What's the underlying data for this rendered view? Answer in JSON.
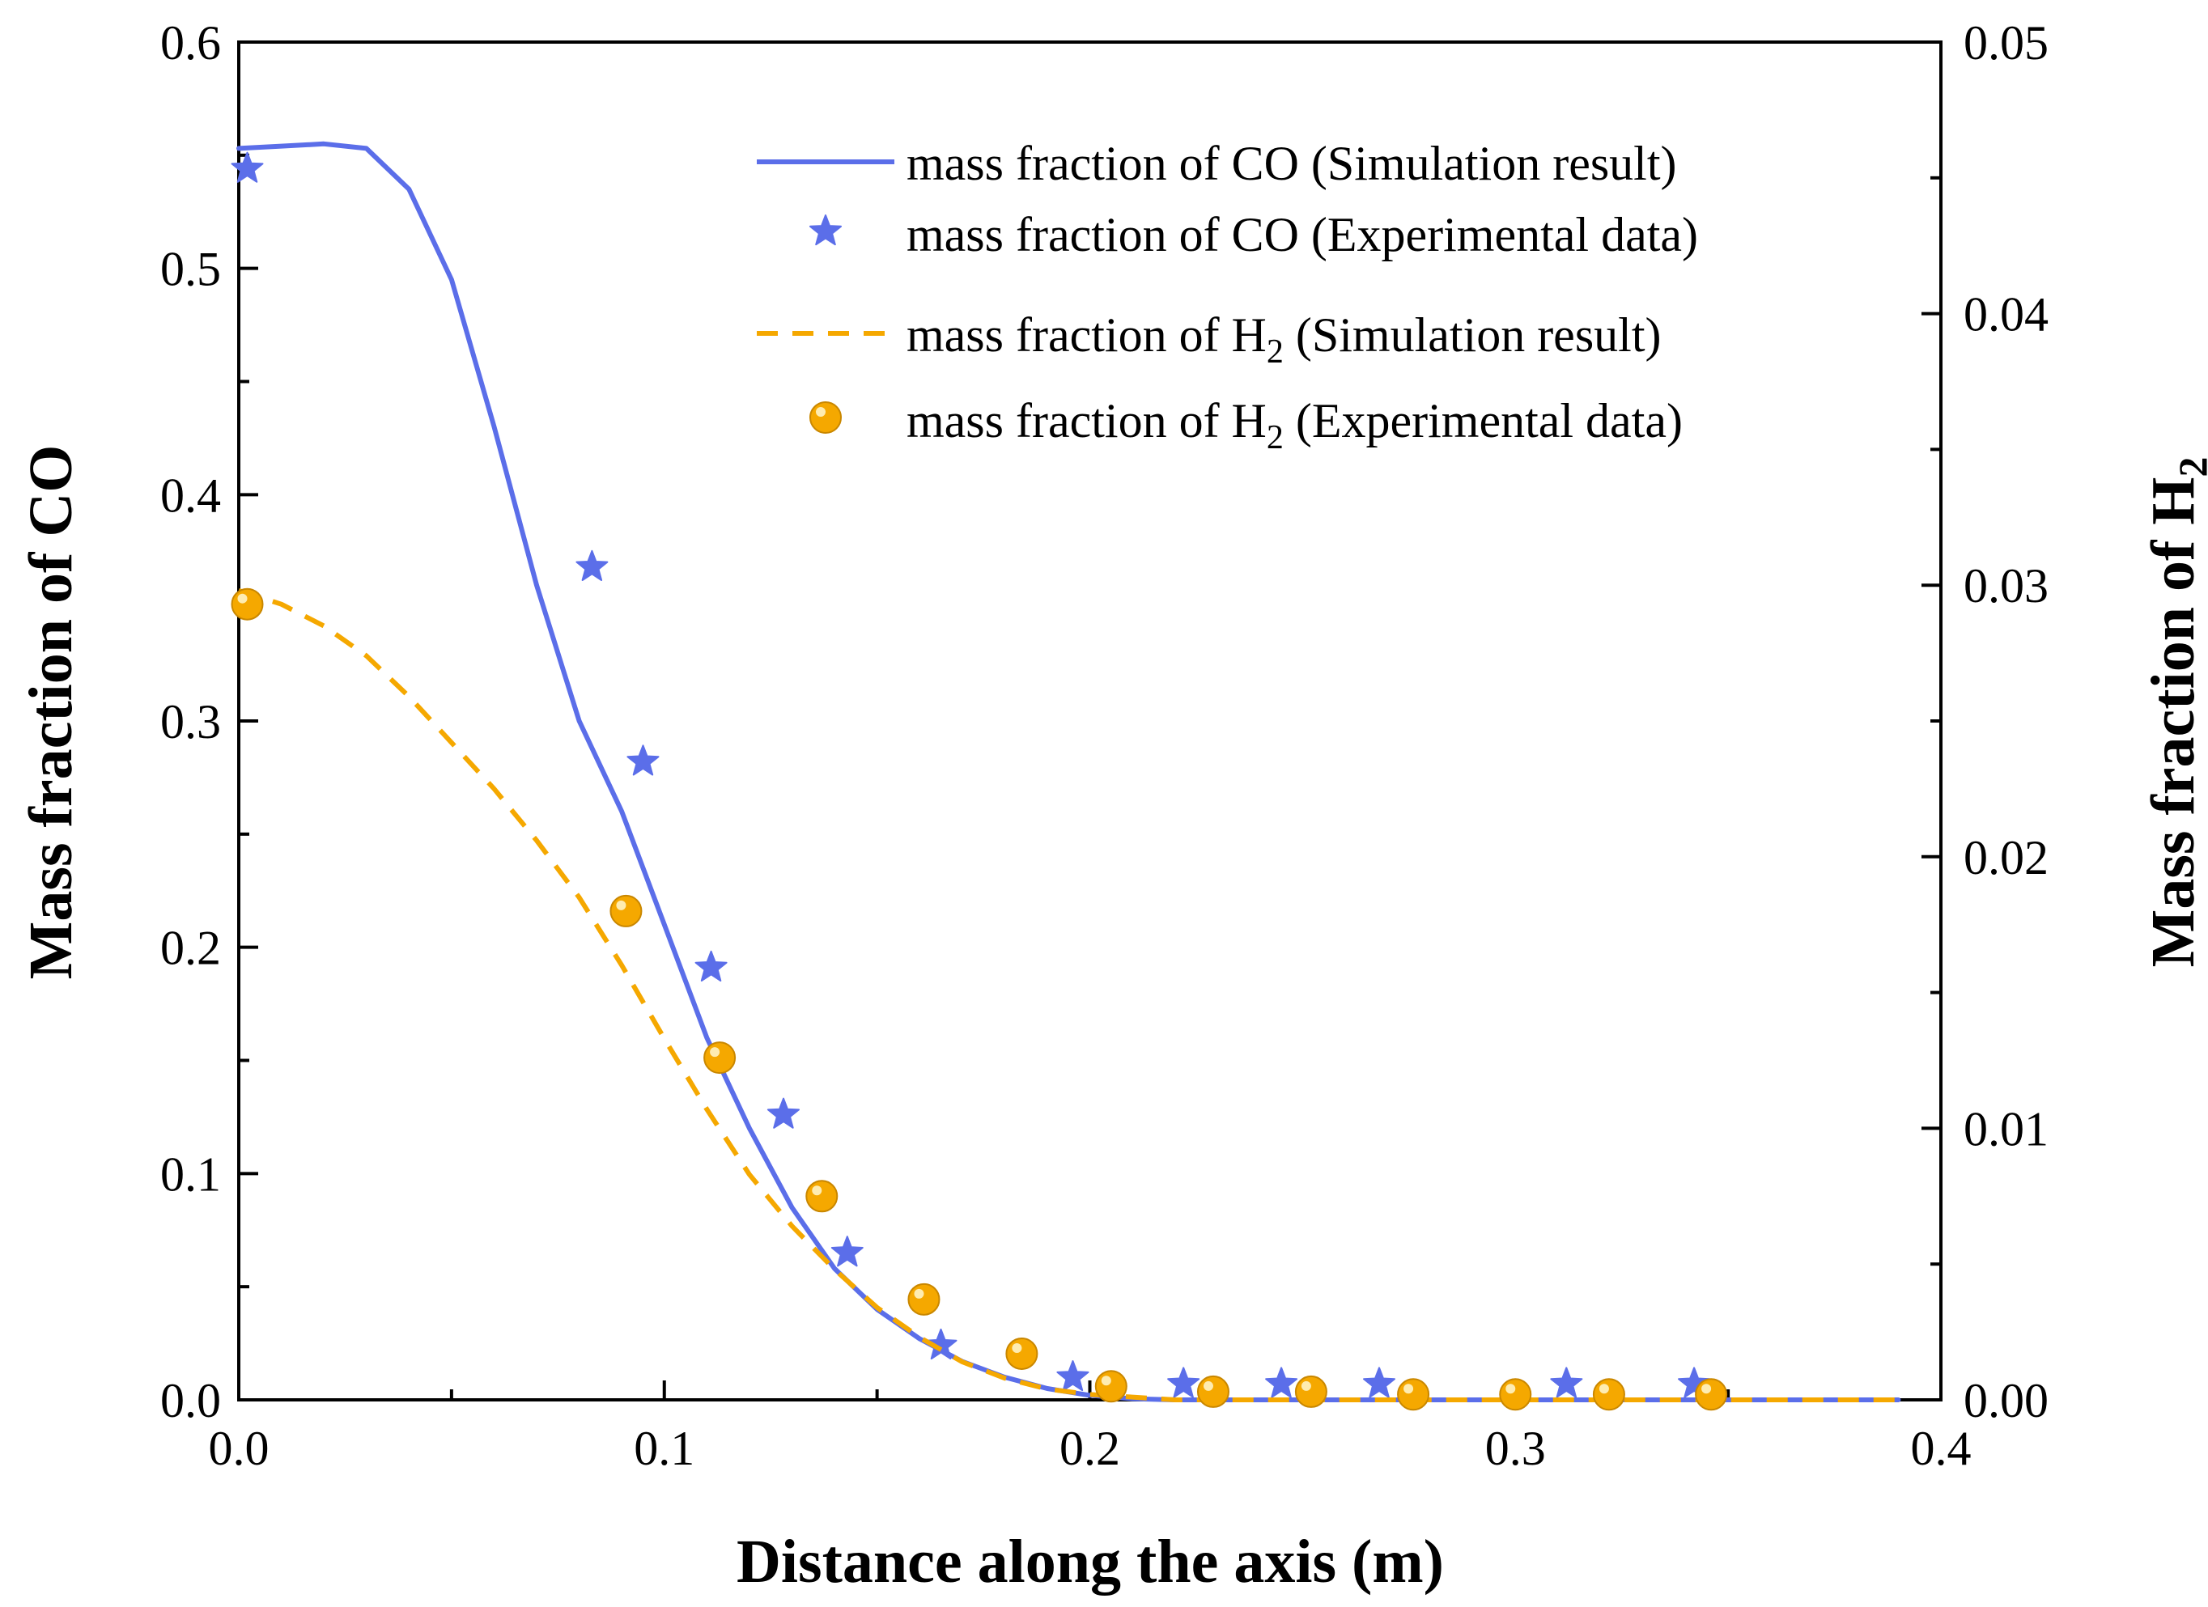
{
  "colors": {
    "co": "#5b6ee9",
    "h2": "#f5a800",
    "axis": "#000000"
  },
  "chart_data": {
    "type": "line",
    "xlabel": "Distance along the axis (m)",
    "ylabel_left": "Mass fraction of CO",
    "ylabel_right_main": "Mass fraction of H",
    "ylabel_right_sub": "2",
    "xlim": [
      0,
      0.4
    ],
    "ylim_left": [
      0,
      0.6
    ],
    "ylim_right": [
      0,
      0.05
    ],
    "x_ticks": [
      "0.0",
      "0.1",
      "0.2",
      "0.3",
      "0.4"
    ],
    "y_left_ticks": [
      "0.0",
      "0.1",
      "0.2",
      "0.3",
      "0.4",
      "0.5",
      "0.6"
    ],
    "y_right_ticks": [
      "0.00",
      "0.01",
      "0.02",
      "0.03",
      "0.04",
      "0.05"
    ],
    "legend_position": "top-right",
    "series": [
      {
        "name": "mass fraction of CO (Simulation result)",
        "legend_main": "mass fraction of CO (Simulation result)",
        "legend_sub": "",
        "legend_rest": "",
        "axis": "left",
        "style": "solid-line",
        "color": "#5b6ee9",
        "x": [
          0,
          0.01,
          0.02,
          0.03,
          0.04,
          0.05,
          0.06,
          0.07,
          0.08,
          0.09,
          0.1,
          0.11,
          0.12,
          0.13,
          0.14,
          0.15,
          0.16,
          0.17,
          0.18,
          0.19,
          0.2,
          0.21,
          0.22,
          0.25,
          0.3,
          0.35,
          0.39
        ],
        "y": [
          0.553,
          0.554,
          0.555,
          0.553,
          0.535,
          0.495,
          0.43,
          0.36,
          0.3,
          0.26,
          0.21,
          0.16,
          0.12,
          0.085,
          0.058,
          0.04,
          0.027,
          0.017,
          0.01,
          0.005,
          0.002,
          0.0005,
          0,
          0,
          0,
          0,
          0
        ]
      },
      {
        "name": "mass fraction of CO (Experimental data)",
        "legend_main": "mass fraction of CO (Experimental data)",
        "legend_sub": "",
        "legend_rest": "",
        "axis": "left",
        "style": "star",
        "color": "#5b6ee9",
        "x": [
          0.002,
          0.083,
          0.095,
          0.111,
          0.128,
          0.143,
          0.165,
          0.196,
          0.222,
          0.245,
          0.268,
          0.312,
          0.342
        ],
        "y": [
          0.544,
          0.368,
          0.282,
          0.191,
          0.126,
          0.065,
          0.024,
          0.01,
          0.007,
          0.007,
          0.007,
          0.007,
          0.007
        ]
      },
      {
        "name": "mass fraction of H2 (Simulation result)",
        "legend_main": "mass fraction of H",
        "legend_sub": "2",
        "legend_rest": " (Simulation result)",
        "axis": "right",
        "style": "dashed-line",
        "color": "#f5a800",
        "x": [
          0,
          0.01,
          0.02,
          0.03,
          0.04,
          0.05,
          0.06,
          0.07,
          0.08,
          0.09,
          0.1,
          0.11,
          0.12,
          0.13,
          0.14,
          0.15,
          0.16,
          0.17,
          0.18,
          0.19,
          0.2,
          0.21,
          0.22,
          0.25,
          0.3,
          0.35,
          0.39
        ],
        "y": [
          0.0298,
          0.0293,
          0.0285,
          0.0274,
          0.0259,
          0.0242,
          0.0225,
          0.0206,
          0.0185,
          0.016,
          0.0133,
          0.0107,
          0.0083,
          0.0064,
          0.0048,
          0.0034,
          0.0023,
          0.0014,
          0.0008,
          0.0004,
          0.0002,
          0.0001,
          0,
          0,
          0,
          0,
          0
        ]
      },
      {
        "name": "mass fraction of H2 (Experimental data)",
        "legend_main": "mass fraction of H",
        "legend_sub": "2",
        "legend_rest": " (Experimental data)",
        "axis": "right",
        "style": "circle",
        "color": "#f5a800",
        "x": [
          0.002,
          0.091,
          0.113,
          0.137,
          0.161,
          0.184,
          0.205,
          0.229,
          0.252,
          0.276,
          0.3,
          0.322,
          0.346
        ],
        "y": [
          0.0293,
          0.018,
          0.0126,
          0.0075,
          0.0037,
          0.0017,
          0.0005,
          0.0003,
          0.0003,
          0.0002,
          0.0002,
          0.0002,
          0.0002
        ]
      }
    ]
  }
}
